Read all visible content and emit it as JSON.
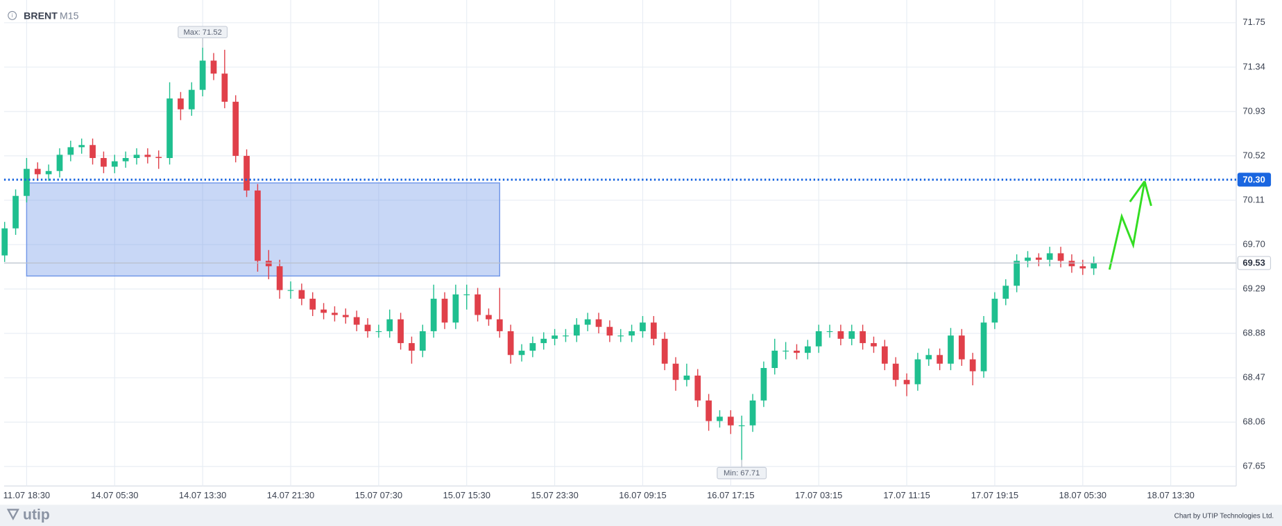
{
  "chart_data": {
    "type": "candlestick",
    "title": "BRENT",
    "subtitle": "M15",
    "up_color": "#1fbf8f",
    "down_color": "#e0404a",
    "grid": true,
    "categories": [
      null,
      null,
      "11.07 18:30",
      null,
      null,
      null,
      null,
      null,
      null,
      null,
      "14.07 05:30",
      null,
      null,
      null,
      null,
      null,
      null,
      null,
      "14.07 13:30",
      null,
      null,
      null,
      null,
      null,
      null,
      null,
      "14.07 21:30",
      null,
      null,
      null,
      null,
      null,
      null,
      null,
      "15.07 07:30",
      null,
      null,
      null,
      null,
      null,
      null,
      null,
      "15.07 15:30",
      null,
      null,
      null,
      null,
      null,
      null,
      null,
      "15.07 23:30",
      null,
      null,
      null,
      null,
      null,
      null,
      null,
      "16.07 09:15",
      null,
      null,
      null,
      null,
      null,
      null,
      null,
      "16.07 17:15",
      null,
      null,
      null,
      null,
      null,
      null,
      null,
      "17.07 03:15",
      null,
      null,
      null,
      null,
      null,
      null,
      null,
      "17.07 11:15",
      null,
      null,
      null,
      null,
      null,
      null,
      null,
      "17.07 19:15",
      null,
      null,
      null,
      null,
      null,
      null,
      null,
      "18.07 05:30",
      null,
      null,
      null,
      null,
      null,
      null,
      null,
      "18.07 13:30",
      null,
      null,
      null,
      null,
      null
    ],
    "open": [
      69.6,
      69.85,
      70.15,
      70.4,
      70.35,
      70.38,
      70.53,
      70.6,
      70.62,
      70.5,
      70.42,
      70.47,
      70.5,
      70.53,
      70.51,
      70.5,
      71.05,
      70.95,
      71.13,
      71.4,
      71.28,
      71.02,
      70.52,
      70.2,
      69.55,
      69.5,
      69.28,
      69.28,
      69.2,
      69.1,
      69.07,
      69.05,
      69.03,
      68.96,
      68.9,
      68.9,
      69.01,
      68.79,
      68.72,
      68.9,
      69.2,
      68.98,
      69.24,
      69.24,
      69.05,
      69.01,
      68.9,
      68.68,
      68.72,
      68.79,
      68.83,
      68.86,
      68.86,
      68.96,
      69.01,
      68.94,
      68.86,
      68.86,
      68.9,
      68.98,
      68.83,
      68.6,
      68.45,
      68.49,
      68.26,
      68.07,
      68.11,
      68.03,
      68.03,
      68.26,
      68.56,
      68.72,
      68.72,
      68.7,
      68.76,
      68.9,
      68.9,
      68.83,
      68.9,
      68.79,
      68.76,
      68.6,
      68.45,
      68.41,
      68.64,
      68.68,
      68.6,
      68.86,
      68.64,
      68.53,
      68.98,
      69.2,
      69.32,
      69.55,
      69.58,
      69.56,
      69.62,
      69.55,
      69.5,
      69.48,
      null,
      null,
      null,
      null,
      null,
      null,
      null,
      null,
      null,
      null,
      null,
      null
    ],
    "high": [
      69.91,
      70.21,
      70.5,
      70.46,
      70.44,
      70.59,
      70.66,
      70.68,
      70.68,
      70.56,
      70.53,
      70.56,
      70.59,
      70.59,
      70.57,
      71.2,
      71.11,
      71.2,
      71.52,
      71.47,
      71.5,
      71.08,
      70.58,
      70.26,
      69.65,
      69.56,
      69.36,
      69.34,
      69.26,
      69.16,
      69.13,
      69.11,
      69.09,
      69.02,
      68.96,
      69.1,
      69.07,
      68.85,
      68.96,
      69.33,
      69.26,
      69.33,
      69.33,
      69.3,
      69.11,
      69.3,
      68.96,
      68.78,
      68.85,
      68.89,
      68.92,
      68.92,
      69.02,
      69.07,
      69.07,
      69.0,
      68.92,
      68.96,
      69.04,
      69.04,
      68.89,
      68.66,
      68.6,
      68.55,
      68.32,
      68.17,
      68.17,
      68.12,
      68.32,
      68.62,
      68.83,
      68.8,
      68.78,
      68.82,
      68.96,
      68.96,
      68.96,
      68.96,
      68.96,
      68.85,
      68.82,
      68.66,
      68.51,
      68.7,
      68.74,
      68.74,
      68.93,
      68.92,
      68.7,
      69.04,
      69.26,
      69.38,
      69.61,
      69.64,
      69.62,
      69.68,
      69.68,
      69.61,
      69.56,
      69.59,
      null,
      null,
      null,
      null,
      null,
      null,
      null,
      null,
      null,
      null,
      null,
      null
    ],
    "low": [
      69.54,
      69.79,
      70.09,
      70.29,
      70.29,
      70.32,
      70.47,
      70.54,
      70.44,
      70.36,
      70.36,
      70.41,
      70.44,
      70.45,
      70.4,
      70.44,
      70.85,
      70.89,
      71.07,
      71.22,
      70.96,
      70.46,
      70.14,
      69.45,
      69.38,
      69.2,
      69.2,
      69.14,
      69.04,
      69.01,
      68.99,
      68.97,
      68.9,
      68.84,
      68.84,
      68.84,
      68.73,
      68.6,
      68.66,
      68.84,
      68.92,
      68.92,
      69.1,
      68.99,
      68.95,
      68.84,
      68.6,
      68.62,
      68.66,
      68.73,
      68.77,
      68.8,
      68.8,
      68.9,
      68.88,
      68.8,
      68.8,
      68.8,
      68.84,
      68.77,
      68.54,
      68.35,
      68.39,
      68.2,
      67.98,
      68.01,
      67.95,
      67.71,
      67.97,
      68.2,
      68.5,
      68.64,
      68.64,
      68.64,
      68.7,
      68.84,
      68.77,
      68.77,
      68.73,
      68.7,
      68.54,
      68.39,
      68.3,
      68.35,
      68.58,
      68.54,
      68.54,
      68.58,
      68.4,
      68.47,
      68.92,
      69.14,
      69.26,
      69.49,
      69.5,
      69.5,
      69.49,
      69.44,
      69.42,
      69.42,
      null,
      null,
      null,
      null,
      null,
      null,
      null,
      null,
      null,
      null,
      null,
      null
    ],
    "close": [
      69.85,
      70.15,
      70.4,
      70.35,
      70.38,
      70.53,
      70.6,
      70.62,
      70.5,
      70.42,
      70.47,
      70.5,
      70.53,
      70.51,
      70.5,
      71.05,
      70.95,
      71.13,
      71.4,
      71.28,
      71.02,
      70.52,
      70.2,
      69.55,
      69.5,
      69.28,
      69.28,
      69.2,
      69.1,
      69.07,
      69.05,
      69.03,
      68.96,
      68.9,
      68.9,
      69.01,
      68.79,
      68.72,
      68.9,
      69.2,
      68.98,
      69.24,
      69.24,
      69.05,
      69.01,
      68.9,
      68.68,
      68.72,
      68.79,
      68.83,
      68.86,
      68.86,
      68.96,
      69.01,
      68.94,
      68.86,
      68.86,
      68.9,
      68.98,
      68.83,
      68.6,
      68.45,
      68.49,
      68.26,
      68.07,
      68.11,
      68.03,
      68.03,
      68.26,
      68.56,
      68.72,
      68.72,
      68.7,
      68.76,
      68.9,
      68.9,
      68.83,
      68.9,
      68.79,
      68.76,
      68.6,
      68.45,
      68.41,
      68.64,
      68.68,
      68.6,
      68.86,
      68.64,
      68.53,
      68.98,
      69.2,
      69.32,
      69.55,
      69.58,
      69.56,
      69.62,
      69.55,
      69.5,
      69.48,
      69.53,
      null,
      null,
      null,
      null,
      null,
      null,
      null,
      null,
      null,
      null,
      null,
      null
    ],
    "ylim": [
      67.47,
      71.96
    ],
    "yticks": [
      71.75,
      71.34,
      70.93,
      70.52,
      70.11,
      {
        "value": 69.7,
        "label": "69.70"
      },
      69.29,
      68.88,
      68.47,
      68.06,
      67.65
    ],
    "zone": {
      "from": 2,
      "to": 45,
      "low": 69.41,
      "high": 70.27,
      "color": "#6f96e8"
    },
    "price_lines": [
      {
        "value": 70.3,
        "label": "70.30",
        "color": "#1a66e0",
        "style": "dotted"
      },
      {
        "value": 69.53,
        "label": "69.53",
        "color": "#b8c0cc",
        "style": "solid"
      }
    ],
    "annotations": [
      {
        "text": "Max: 71.52",
        "category": 18,
        "value": 71.52
      },
      {
        "text": "Min: 67.71",
        "category": 67,
        "value": 67.71
      }
    ],
    "logo": "utip",
    "credit": "Chart by UTIP Technologies Ltd."
  }
}
